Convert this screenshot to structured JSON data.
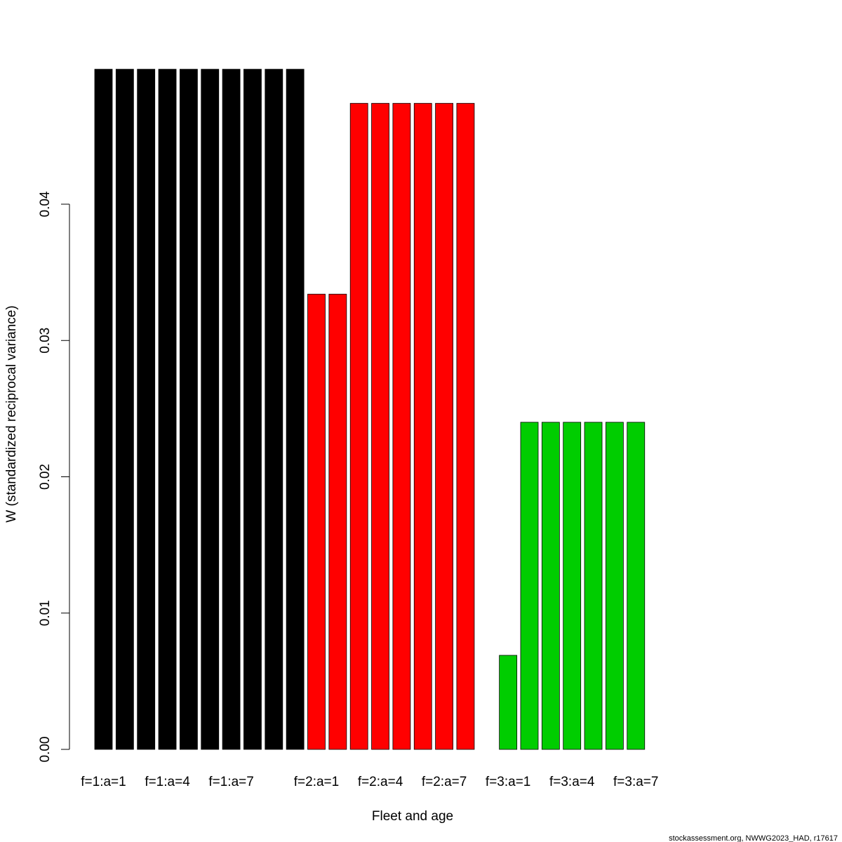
{
  "chart_data": {
    "type": "bar",
    "xlabel": "Fleet and age",
    "ylabel": "W (standardized reciprocal variance)",
    "ylim": [
      0,
      0.05
    ],
    "yticks": [
      "0.00",
      "0.01",
      "0.02",
      "0.03",
      "0.04"
    ],
    "grid": false,
    "series": [
      {
        "color": "#000000",
        "labels": [
          "f=1:a=1",
          "",
          "",
          "f=1:a=4",
          "",
          "",
          "f=1:a=7",
          "",
          "",
          ""
        ],
        "values": [
          0.0499,
          0.0499,
          0.0499,
          0.0499,
          0.0499,
          0.0499,
          0.0499,
          0.0499,
          0.0499,
          0.0499
        ]
      },
      {
        "color": "#ff0000",
        "labels": [
          "f=2:a=1",
          "",
          "",
          "f=2:a=4",
          "",
          "",
          "f=2:a=7",
          "",
          ""
        ],
        "values": [
          0.0334,
          0.0334,
          0.0474,
          0.0474,
          0.0474,
          0.0474,
          0.0474,
          0.0474,
          0.0
        ]
      },
      {
        "color": "#00cd00",
        "labels": [
          "f=3:a=1",
          "",
          "",
          "f=3:a=4",
          "",
          "",
          "f=3:a=7"
        ],
        "values": [
          0.0069,
          0.024,
          0.024,
          0.024,
          0.024,
          0.024,
          0.024
        ]
      }
    ]
  },
  "footer": "stockassessment.org, NWWG2023_HAD, r17617"
}
